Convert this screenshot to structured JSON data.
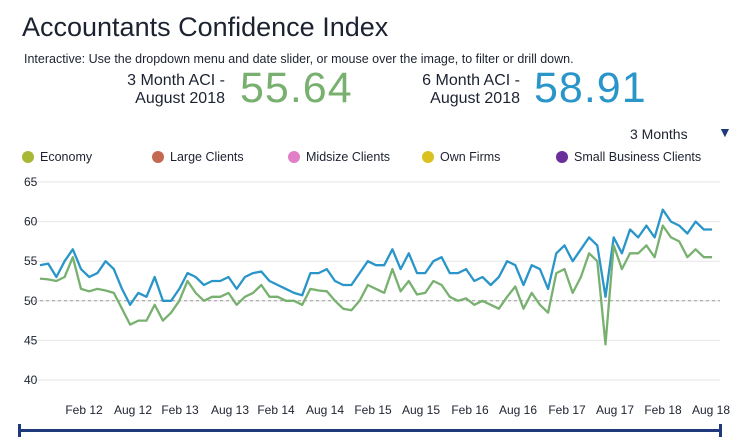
{
  "header": {
    "title": "Accountants Confidence Index",
    "subtitle": "Interactive: Use the dropdown menu and date slider, or mouse over the image, to filter or drill down."
  },
  "kpis": {
    "three_month": {
      "label_line1": "3 Month ACI -",
      "label_line2": "August 2018",
      "value": "55.64",
      "color": "#78b16f"
    },
    "six_month": {
      "label_line1": "6 Month ACI -",
      "label_line2": "August 2018",
      "value": "58.91",
      "color": "#2995c9"
    }
  },
  "controls": {
    "period_dropdown_value": "3 Months",
    "dropdown_caret": "▼"
  },
  "legend": [
    {
      "label": "Economy",
      "color": "#a9b834"
    },
    {
      "label": "Large Clients",
      "color": "#c4684f"
    },
    {
      "label": "Midsize Clients",
      "color": "#e07fc8"
    },
    {
      "label": "Own Firms",
      "color": "#d9c21f"
    },
    {
      "label": "Small Business Clients",
      "color": "#6a2f9a"
    }
  ],
  "chart_data": {
    "type": "line",
    "title": "Accountants Confidence Index",
    "xlabel": "",
    "ylabel": "",
    "ylim": [
      40,
      65
    ],
    "y_ticks": [
      "40",
      "45",
      "50",
      "55",
      "60",
      "65"
    ],
    "x_ticks": [
      "Feb 12",
      "Aug 12",
      "Feb 13",
      "Aug 13",
      "Feb 14",
      "Aug 14",
      "Feb 15",
      "Aug 15",
      "Feb 16",
      "Aug 16",
      "Feb 17",
      "Aug 17",
      "Feb 18",
      "Aug 18"
    ],
    "reference_line": 50,
    "series": [
      {
        "name": "6 Month ACI",
        "color": "#2995c9",
        "values": [
          54.5,
          54.7,
          53.0,
          55.0,
          56.5,
          54.0,
          53.0,
          53.5,
          55.0,
          54.0,
          51.5,
          49.5,
          51.0,
          50.5,
          53.0,
          50.0,
          50.0,
          51.5,
          53.5,
          53.0,
          52.0,
          52.5,
          52.5,
          53.0,
          51.5,
          53.0,
          53.5,
          53.7,
          52.5,
          52.0,
          51.5,
          51.0,
          50.7,
          53.5,
          53.5,
          54.0,
          52.5,
          52.0,
          52.0,
          53.5,
          55.0,
          54.5,
          54.5,
          56.5,
          54.0,
          56.0,
          53.5,
          53.5,
          55.0,
          55.5,
          53.5,
          53.5,
          54.0,
          52.5,
          53.0,
          52.0,
          53.0,
          55.0,
          54.5,
          52.0,
          54.5,
          54.0,
          51.5,
          56.0,
          57.0,
          55.0,
          56.5,
          58.0,
          57.0,
          50.5,
          58.0,
          56.0,
          59.0,
          58.0,
          59.5,
          58.0,
          61.5,
          60.0,
          59.5,
          58.5,
          60.0,
          59.0,
          59.0
        ]
      },
      {
        "name": "3 Month ACI",
        "color": "#78b16f",
        "values": [
          52.8,
          52.7,
          52.5,
          53.0,
          55.5,
          51.5,
          51.2,
          51.5,
          51.3,
          51.0,
          49.0,
          47.0,
          47.5,
          47.5,
          49.5,
          47.5,
          48.5,
          50.0,
          52.5,
          51.0,
          50.0,
          50.5,
          50.5,
          51.0,
          49.5,
          50.5,
          51.0,
          52.0,
          50.5,
          50.5,
          50.0,
          50.0,
          49.5,
          51.5,
          51.3,
          51.2,
          50.0,
          49.0,
          48.8,
          50.0,
          52.0,
          51.5,
          51.0,
          54.0,
          51.2,
          52.5,
          50.8,
          51.0,
          52.5,
          52.0,
          50.5,
          50.0,
          50.3,
          49.5,
          50.0,
          49.5,
          49.0,
          50.5,
          51.8,
          49.0,
          51.0,
          49.5,
          48.5,
          53.5,
          54.0,
          51.0,
          53.0,
          56.0,
          55.0,
          44.5,
          57.0,
          54.0,
          56.0,
          56.0,
          57.0,
          55.5,
          59.5,
          58.0,
          57.5,
          55.5,
          56.5,
          55.5,
          55.5
        ]
      }
    ]
  }
}
